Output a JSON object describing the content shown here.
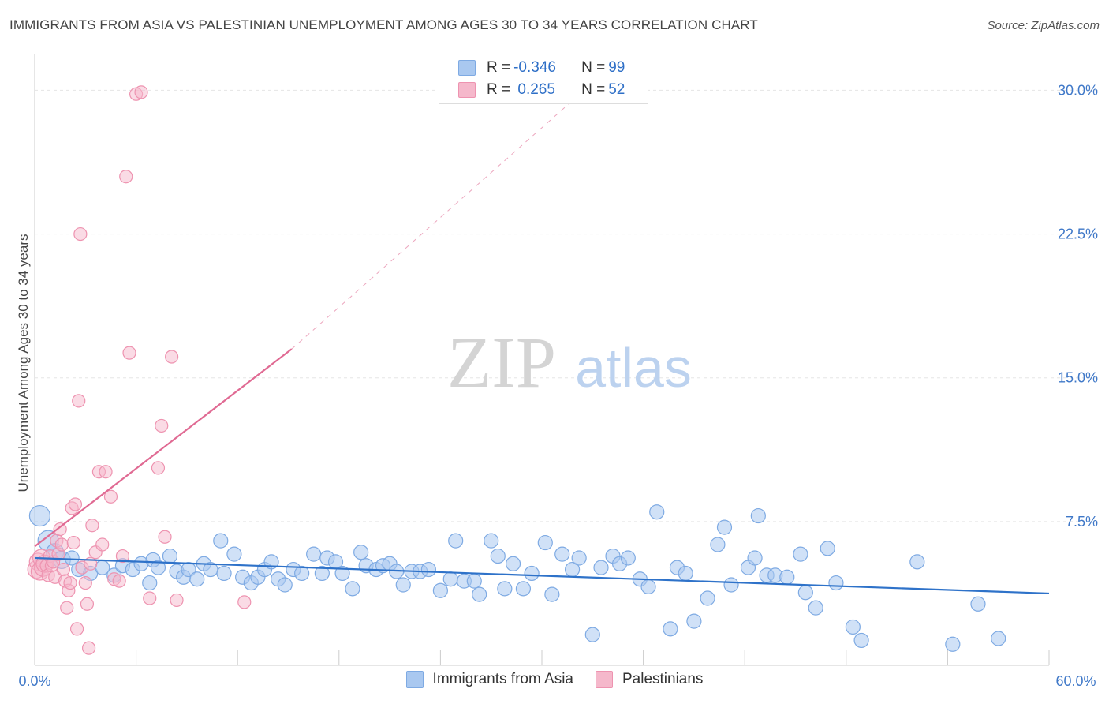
{
  "title": "IMMIGRANTS FROM ASIA VS PALESTINIAN UNEMPLOYMENT AMONG AGES 30 TO 34 YEARS CORRELATION CHART",
  "source": "Source: ZipAtlas.com",
  "watermark": {
    "zip": "ZIP",
    "atlas": "atlas"
  },
  "legend": {
    "rows": [
      {
        "r_label": "R = ",
        "r_value": "-0.346",
        "n_label": "N = ",
        "n_value": "99"
      },
      {
        "r_label": "R = ",
        "r_value": " 0.265",
        "n_label": "N = ",
        "n_value": "52"
      }
    ]
  },
  "colors": {
    "asia_fill": "#a9c8f0",
    "asia_stroke": "#7eaae3",
    "asia_line": "#2e72c9",
    "pal_fill": "#f5b8cb",
    "pal_stroke": "#ee93b0",
    "pal_line": "#e06a93",
    "tick_label": "#3f78c8",
    "grid": "#e5e5e5"
  },
  "chart_data": {
    "type": "scatter",
    "title": "IMMIGRANTS FROM ASIA VS PALESTINIAN UNEMPLOYMENT AMONG AGES 30 TO 34 YEARS CORRELATION CHART",
    "xlabel": "",
    "ylabel": "Unemployment Among Ages 30 to 34 years",
    "xlim": [
      0,
      60
    ],
    "ylim": [
      0,
      31.5
    ],
    "x_tick_labels": [
      "0.0%",
      "60.0%"
    ],
    "y_ticks": [
      7.5,
      15.0,
      22.5,
      30.0
    ],
    "y_tick_labels": [
      "7.5%",
      "15.0%",
      "22.5%",
      "30.0%"
    ],
    "grid": true,
    "legend_position": "bottom",
    "series": [
      {
        "name": "Immigrants from Asia",
        "trend": {
          "x": [
            0,
            60
          ],
          "y": [
            5.6,
            3.75
          ],
          "style": "solid"
        },
        "points": [
          [
            0.3,
            7.8
          ],
          [
            0.8,
            6.5
          ],
          [
            1.2,
            5.9
          ],
          [
            1.6,
            5.5
          ],
          [
            2.2,
            5.6
          ],
          [
            2.6,
            5.0
          ],
          [
            3.3,
            4.8
          ],
          [
            4.0,
            5.1
          ],
          [
            4.7,
            4.7
          ],
          [
            5.2,
            5.2
          ],
          [
            5.8,
            5.0
          ],
          [
            6.3,
            5.3
          ],
          [
            6.8,
            4.3
          ],
          [
            7.0,
            5.5
          ],
          [
            7.3,
            5.1
          ],
          [
            8.0,
            5.7
          ],
          [
            8.4,
            4.9
          ],
          [
            8.8,
            4.6
          ],
          [
            9.1,
            5.0
          ],
          [
            9.6,
            4.5
          ],
          [
            10.0,
            5.3
          ],
          [
            10.4,
            5.0
          ],
          [
            11.0,
            6.5
          ],
          [
            11.2,
            4.8
          ],
          [
            11.8,
            5.8
          ],
          [
            12.3,
            4.6
          ],
          [
            12.8,
            4.3
          ],
          [
            13.2,
            4.6
          ],
          [
            13.6,
            5.0
          ],
          [
            14.0,
            5.4
          ],
          [
            14.4,
            4.5
          ],
          [
            14.8,
            4.2
          ],
          [
            15.3,
            5.0
          ],
          [
            15.8,
            4.8
          ],
          [
            16.5,
            5.8
          ],
          [
            17.0,
            4.8
          ],
          [
            17.3,
            5.6
          ],
          [
            17.8,
            5.4
          ],
          [
            18.2,
            4.8
          ],
          [
            18.8,
            4.0
          ],
          [
            19.3,
            5.9
          ],
          [
            19.6,
            5.2
          ],
          [
            20.2,
            5.0
          ],
          [
            20.6,
            5.2
          ],
          [
            21.0,
            5.3
          ],
          [
            21.4,
            4.9
          ],
          [
            21.8,
            4.2
          ],
          [
            22.3,
            4.9
          ],
          [
            22.8,
            4.9
          ],
          [
            23.3,
            5.0
          ],
          [
            24.0,
            3.9
          ],
          [
            24.6,
            4.5
          ],
          [
            24.9,
            6.5
          ],
          [
            25.4,
            4.4
          ],
          [
            26.0,
            4.4
          ],
          [
            26.3,
            3.7
          ],
          [
            27.0,
            6.5
          ],
          [
            27.4,
            5.7
          ],
          [
            27.8,
            4.0
          ],
          [
            28.3,
            5.3
          ],
          [
            28.9,
            4.0
          ],
          [
            29.4,
            4.8
          ],
          [
            30.2,
            6.4
          ],
          [
            30.6,
            3.7
          ],
          [
            31.2,
            5.8
          ],
          [
            31.8,
            5.0
          ],
          [
            32.2,
            5.6
          ],
          [
            33.0,
            1.6
          ],
          [
            33.5,
            5.1
          ],
          [
            34.2,
            5.7
          ],
          [
            34.6,
            5.3
          ],
          [
            35.1,
            5.6
          ],
          [
            35.8,
            4.5
          ],
          [
            36.3,
            4.1
          ],
          [
            36.8,
            8.0
          ],
          [
            37.6,
            1.9
          ],
          [
            38.0,
            5.1
          ],
          [
            38.5,
            4.8
          ],
          [
            39.0,
            2.3
          ],
          [
            39.8,
            3.5
          ],
          [
            40.4,
            6.3
          ],
          [
            40.8,
            7.2
          ],
          [
            41.2,
            4.2
          ],
          [
            42.2,
            5.1
          ],
          [
            42.6,
            5.6
          ],
          [
            42.8,
            7.8
          ],
          [
            43.3,
            4.7
          ],
          [
            43.8,
            4.7
          ],
          [
            44.5,
            4.6
          ],
          [
            45.3,
            5.8
          ],
          [
            45.6,
            3.8
          ],
          [
            46.2,
            3.0
          ],
          [
            46.9,
            6.1
          ],
          [
            47.4,
            4.3
          ],
          [
            48.4,
            2.0
          ],
          [
            48.9,
            1.3
          ],
          [
            52.2,
            5.4
          ],
          [
            54.3,
            1.1
          ],
          [
            55.8,
            3.2
          ],
          [
            57.0,
            1.4
          ]
        ]
      },
      {
        "name": "Palestinians",
        "trend": {
          "x": [
            0,
            15.2
          ],
          "y": [
            6.2,
            16.5
          ],
          "style": "solid",
          "extended_dashed_to": [
            32.5,
            30.0
          ]
        },
        "points": [
          [
            0.1,
            5.0
          ],
          [
            0.2,
            5.4
          ],
          [
            0.3,
            4.9
          ],
          [
            0.4,
            5.6
          ],
          [
            0.5,
            5.1
          ],
          [
            0.6,
            5.3
          ],
          [
            0.7,
            5.2
          ],
          [
            0.8,
            4.7
          ],
          [
            0.9,
            5.7
          ],
          [
            1.0,
            5.2
          ],
          [
            1.1,
            5.4
          ],
          [
            1.2,
            4.6
          ],
          [
            1.3,
            6.5
          ],
          [
            1.4,
            5.8
          ],
          [
            1.5,
            7.1
          ],
          [
            1.6,
            6.3
          ],
          [
            1.7,
            5.0
          ],
          [
            1.8,
            4.4
          ],
          [
            1.9,
            3.0
          ],
          [
            2.0,
            3.9
          ],
          [
            2.1,
            4.3
          ],
          [
            2.2,
            8.2
          ],
          [
            2.3,
            6.4
          ],
          [
            2.4,
            8.4
          ],
          [
            2.5,
            1.9
          ],
          [
            2.6,
            13.8
          ],
          [
            2.8,
            5.1
          ],
          [
            3.0,
            4.3
          ],
          [
            3.1,
            3.2
          ],
          [
            3.2,
            0.9
          ],
          [
            3.3,
            5.3
          ],
          [
            3.4,
            7.3
          ],
          [
            3.6,
            5.9
          ],
          [
            3.8,
            10.1
          ],
          [
            4.0,
            6.3
          ],
          [
            4.2,
            10.1
          ],
          [
            4.5,
            8.8
          ],
          [
            4.7,
            4.5
          ],
          [
            5.0,
            4.4
          ],
          [
            5.2,
            5.7
          ],
          [
            5.4,
            25.5
          ],
          [
            5.6,
            16.3
          ],
          [
            6.0,
            29.8
          ],
          [
            6.3,
            29.9
          ],
          [
            6.8,
            3.5
          ],
          [
            7.3,
            10.3
          ],
          [
            7.5,
            12.5
          ],
          [
            7.7,
            6.7
          ],
          [
            8.1,
            16.1
          ],
          [
            8.4,
            3.4
          ],
          [
            12.4,
            3.3
          ],
          [
            2.7,
            22.5
          ]
        ]
      }
    ]
  }
}
